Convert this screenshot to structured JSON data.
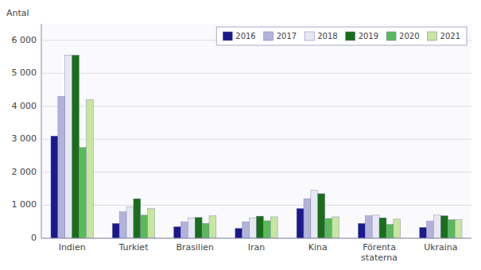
{
  "chart_data": {
    "type": "bar",
    "y_label": "Antal",
    "categories": [
      "Indien",
      "Turkiet",
      "Brasilien",
      "Iran",
      "Kina",
      "Förenta\nstaterna",
      "Ukraina"
    ],
    "series": [
      {
        "name": "2016",
        "color": "#1a1a8c",
        "values": [
          3100,
          450,
          350,
          300,
          900,
          450,
          330
        ]
      },
      {
        "name": "2017",
        "color": "#b3b3d9",
        "values": [
          4300,
          800,
          500,
          500,
          1200,
          680,
          520
        ]
      },
      {
        "name": "2018",
        "color": "#e8e8f5",
        "values": [
          5550,
          950,
          620,
          620,
          1450,
          700,
          700
        ]
      },
      {
        "name": "2019",
        "color": "#1a6e1a",
        "values": [
          5550,
          1200,
          630,
          670,
          1350,
          620,
          680
        ]
      },
      {
        "name": "2020",
        "color": "#5aba5a",
        "values": [
          2750,
          700,
          450,
          530,
          600,
          420,
          560
        ]
      },
      {
        "name": "2021",
        "color": "#c8e6a0",
        "values": [
          4200,
          900,
          680,
          650,
          650,
          580,
          560
        ]
      }
    ],
    "ylim": [
      0,
      6500
    ],
    "yticks": [
      0,
      {
        "value": 1000,
        "label": "1 000"
      },
      {
        "value": 2000,
        "label": "2 000"
      },
      {
        "value": 3000,
        "label": "3 000"
      },
      {
        "value": 4000,
        "label": "4 000"
      },
      {
        "value": 5000,
        "label": "5 000"
      },
      {
        "value": 6000,
        "label": "6 000"
      }
    ],
    "grid": true,
    "legend": "upper right"
  }
}
